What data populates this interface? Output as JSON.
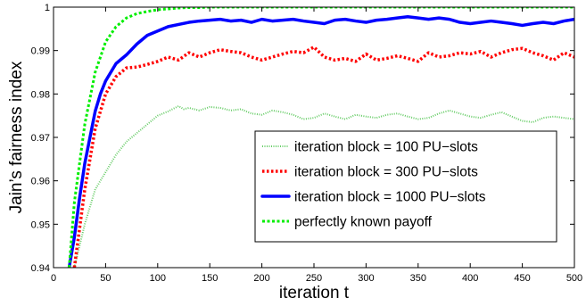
{
  "chart_data": {
    "type": "line",
    "title": "",
    "xlabel": "iteration t",
    "ylabel": "Jain’s fairness index",
    "xlim": [
      0,
      500
    ],
    "ylim": [
      0.94,
      1
    ],
    "xticks": [
      0,
      50,
      100,
      150,
      200,
      250,
      300,
      350,
      400,
      450,
      500
    ],
    "xtick_labels": [
      "0",
      "50",
      "100",
      "150",
      "200",
      "250",
      "300",
      "350",
      "400",
      "450",
      "500"
    ],
    "yticks": [
      0.94,
      0.95,
      0.96,
      0.97,
      0.98,
      0.99,
      1
    ],
    "ytick_labels": [
      "0.94",
      "0.95",
      "0.96",
      "0.97",
      "0.98",
      "0.99",
      "1"
    ],
    "grid": false,
    "legend_position": "bottom-right",
    "series": [
      {
        "name": "iteration block = 100 PU−slots",
        "color": "#66cc66",
        "style": "dotted-thin",
        "x": [
          20,
          30,
          40,
          50,
          60,
          70,
          80,
          90,
          100,
          110,
          120,
          125,
          130,
          140,
          150,
          160,
          170,
          180,
          190,
          200,
          210,
          220,
          230,
          240,
          250,
          260,
          270,
          280,
          290,
          300,
          310,
          320,
          330,
          340,
          350,
          360,
          370,
          380,
          390,
          400,
          410,
          420,
          430,
          440,
          450,
          460,
          470,
          480,
          490,
          500
        ],
        "y": [
          0.94,
          0.95,
          0.958,
          0.962,
          0.966,
          0.969,
          0.971,
          0.973,
          0.975,
          0.976,
          0.9772,
          0.9765,
          0.9768,
          0.9762,
          0.977,
          0.9768,
          0.9762,
          0.9765,
          0.9755,
          0.9752,
          0.9762,
          0.9758,
          0.9752,
          0.9742,
          0.9745,
          0.9755,
          0.9748,
          0.9742,
          0.9752,
          0.9748,
          0.9745,
          0.9752,
          0.9755,
          0.9748,
          0.9742,
          0.9745,
          0.9755,
          0.9762,
          0.9755,
          0.9748,
          0.9745,
          0.9752,
          0.9758,
          0.9748,
          0.9738,
          0.9735,
          0.9745,
          0.9748,
          0.9745,
          0.9742
        ]
      },
      {
        "name": "iteration block = 300 PU−slots",
        "color": "#ff0000",
        "style": "dotted-thick",
        "x": [
          20,
          30,
          40,
          50,
          60,
          70,
          80,
          90,
          100,
          110,
          120,
          130,
          140,
          150,
          160,
          170,
          180,
          190,
          200,
          210,
          220,
          230,
          240,
          250,
          260,
          270,
          280,
          290,
          300,
          310,
          320,
          330,
          340,
          350,
          360,
          370,
          380,
          390,
          400,
          410,
          420,
          430,
          440,
          450,
          460,
          470,
          480,
          490,
          500
        ],
        "y": [
          0.94,
          0.958,
          0.972,
          0.98,
          0.984,
          0.986,
          0.9862,
          0.9868,
          0.9875,
          0.9885,
          0.9878,
          0.9895,
          0.9885,
          0.9895,
          0.9902,
          0.9898,
          0.9895,
          0.9885,
          0.9878,
          0.9885,
          0.9892,
          0.9898,
          0.9895,
          0.9908,
          0.9885,
          0.9878,
          0.9882,
          0.9875,
          0.9892,
          0.9878,
          0.9882,
          0.9888,
          0.9882,
          0.9875,
          0.9895,
          0.9885,
          0.9888,
          0.9895,
          0.9892,
          0.9898,
          0.9885,
          0.9895,
          0.9902,
          0.9905,
          0.9895,
          0.9888,
          0.9878,
          0.9895,
          0.9885
        ]
      },
      {
        "name": "iteration block = 1000 PU−slots",
        "color": "#0000ff",
        "style": "solid-thick",
        "x": [
          15,
          20,
          25,
          30,
          35,
          40,
          45,
          50,
          55,
          60,
          70,
          80,
          90,
          100,
          110,
          120,
          130,
          140,
          150,
          160,
          170,
          180,
          190,
          200,
          210,
          220,
          230,
          240,
          250,
          260,
          270,
          280,
          290,
          300,
          310,
          320,
          330,
          340,
          350,
          360,
          370,
          380,
          390,
          400,
          410,
          420,
          430,
          440,
          450,
          460,
          470,
          480,
          490,
          500
        ],
        "y": [
          0.94,
          0.947,
          0.956,
          0.964,
          0.97,
          0.976,
          0.98,
          0.983,
          0.985,
          0.987,
          0.989,
          0.9915,
          0.9935,
          0.9945,
          0.9955,
          0.996,
          0.9965,
          0.9968,
          0.997,
          0.9972,
          0.9968,
          0.997,
          0.9965,
          0.9972,
          0.9968,
          0.997,
          0.9972,
          0.9968,
          0.9965,
          0.9962,
          0.997,
          0.9972,
          0.9968,
          0.9965,
          0.997,
          0.9972,
          0.9975,
          0.9978,
          0.9975,
          0.9972,
          0.9975,
          0.9972,
          0.9965,
          0.9962,
          0.9965,
          0.9968,
          0.9965,
          0.9962,
          0.9958,
          0.9962,
          0.9965,
          0.9962,
          0.9968,
          0.9972
        ]
      },
      {
        "name": "perfectly known payoff",
        "color": "#00ee00",
        "style": "dashdot",
        "x": [
          15,
          20,
          30,
          40,
          50,
          60,
          70,
          80,
          90,
          100,
          110,
          120,
          130,
          140,
          150,
          175,
          200,
          250,
          300,
          350,
          400,
          450,
          500
        ],
        "y": [
          0.94,
          0.955,
          0.973,
          0.985,
          0.992,
          0.9955,
          0.9975,
          0.9985,
          0.999,
          0.9994,
          0.9996,
          0.9998,
          0.9999,
          0.9999,
          1,
          1,
          1,
          1,
          1,
          1,
          1,
          1,
          1
        ]
      }
    ]
  }
}
